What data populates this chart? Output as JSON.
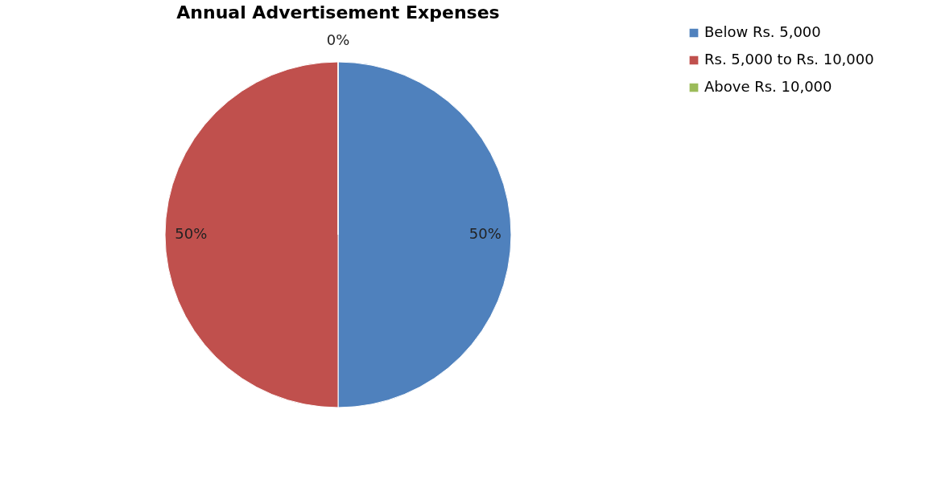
{
  "chart_data": {
    "type": "pie",
    "title": "Annual Advertisement Expenses",
    "categories": [
      "Below Rs. 5,000",
      "Rs. 5,000 to Rs. 10,000",
      "Above Rs. 10,000"
    ],
    "values": [
      50,
      50,
      0
    ],
    "colors": [
      "#4f81bd",
      "#c0504d",
      "#9bbb59"
    ],
    "value_labels": [
      "50%",
      "50%",
      "0%"
    ],
    "legend": "right"
  }
}
